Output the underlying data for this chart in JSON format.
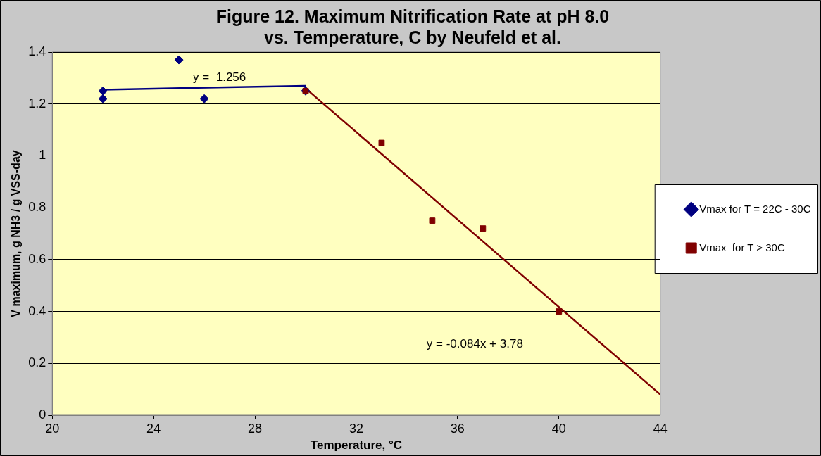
{
  "chart_data": {
    "type": "scatter",
    "title": "Figure 12. Maximum Nitrification Rate at pH 8.0\nvs. Temperature, C by Neufeld et al.",
    "xlabel": "Temperature, °C",
    "ylabel": "V maximum, g NH3 / g VSS-day",
    "xlim": [
      20,
      44
    ],
    "xticks": [
      20,
      24,
      28,
      32,
      36,
      40,
      44
    ],
    "ylim": [
      0,
      1.4
    ],
    "yticks": [
      0,
      0.2,
      0.4,
      0.6,
      0.8,
      1,
      1.2,
      1.4
    ],
    "grid": "y",
    "legend": "right",
    "series": [
      {
        "name": "Vmax for T = 22C - 30C",
        "marker": "diamond",
        "color": "#000080",
        "x": [
          22,
          22,
          25,
          26,
          30
        ],
        "values": [
          1.25,
          1.22,
          1.37,
          1.22,
          1.25
        ]
      },
      {
        "name": "Vmax  for T > 30C",
        "marker": "square",
        "color": "#800000",
        "x": [
          30,
          33,
          35,
          37,
          40
        ],
        "values": [
          1.25,
          1.05,
          0.75,
          0.72,
          0.4
        ]
      },
      {
        "type": "line",
        "marker": "none",
        "color": "#000080",
        "x": [
          22,
          30
        ],
        "values": [
          1.255,
          1.27
        ]
      },
      {
        "type": "line",
        "marker": "none",
        "color": "#800000",
        "x": [
          30,
          44
        ],
        "values": [
          1.26,
          0.08
        ]
      }
    ],
    "annotations": [
      "y =  1.256",
      "y = -0.084x + 3.78"
    ]
  }
}
